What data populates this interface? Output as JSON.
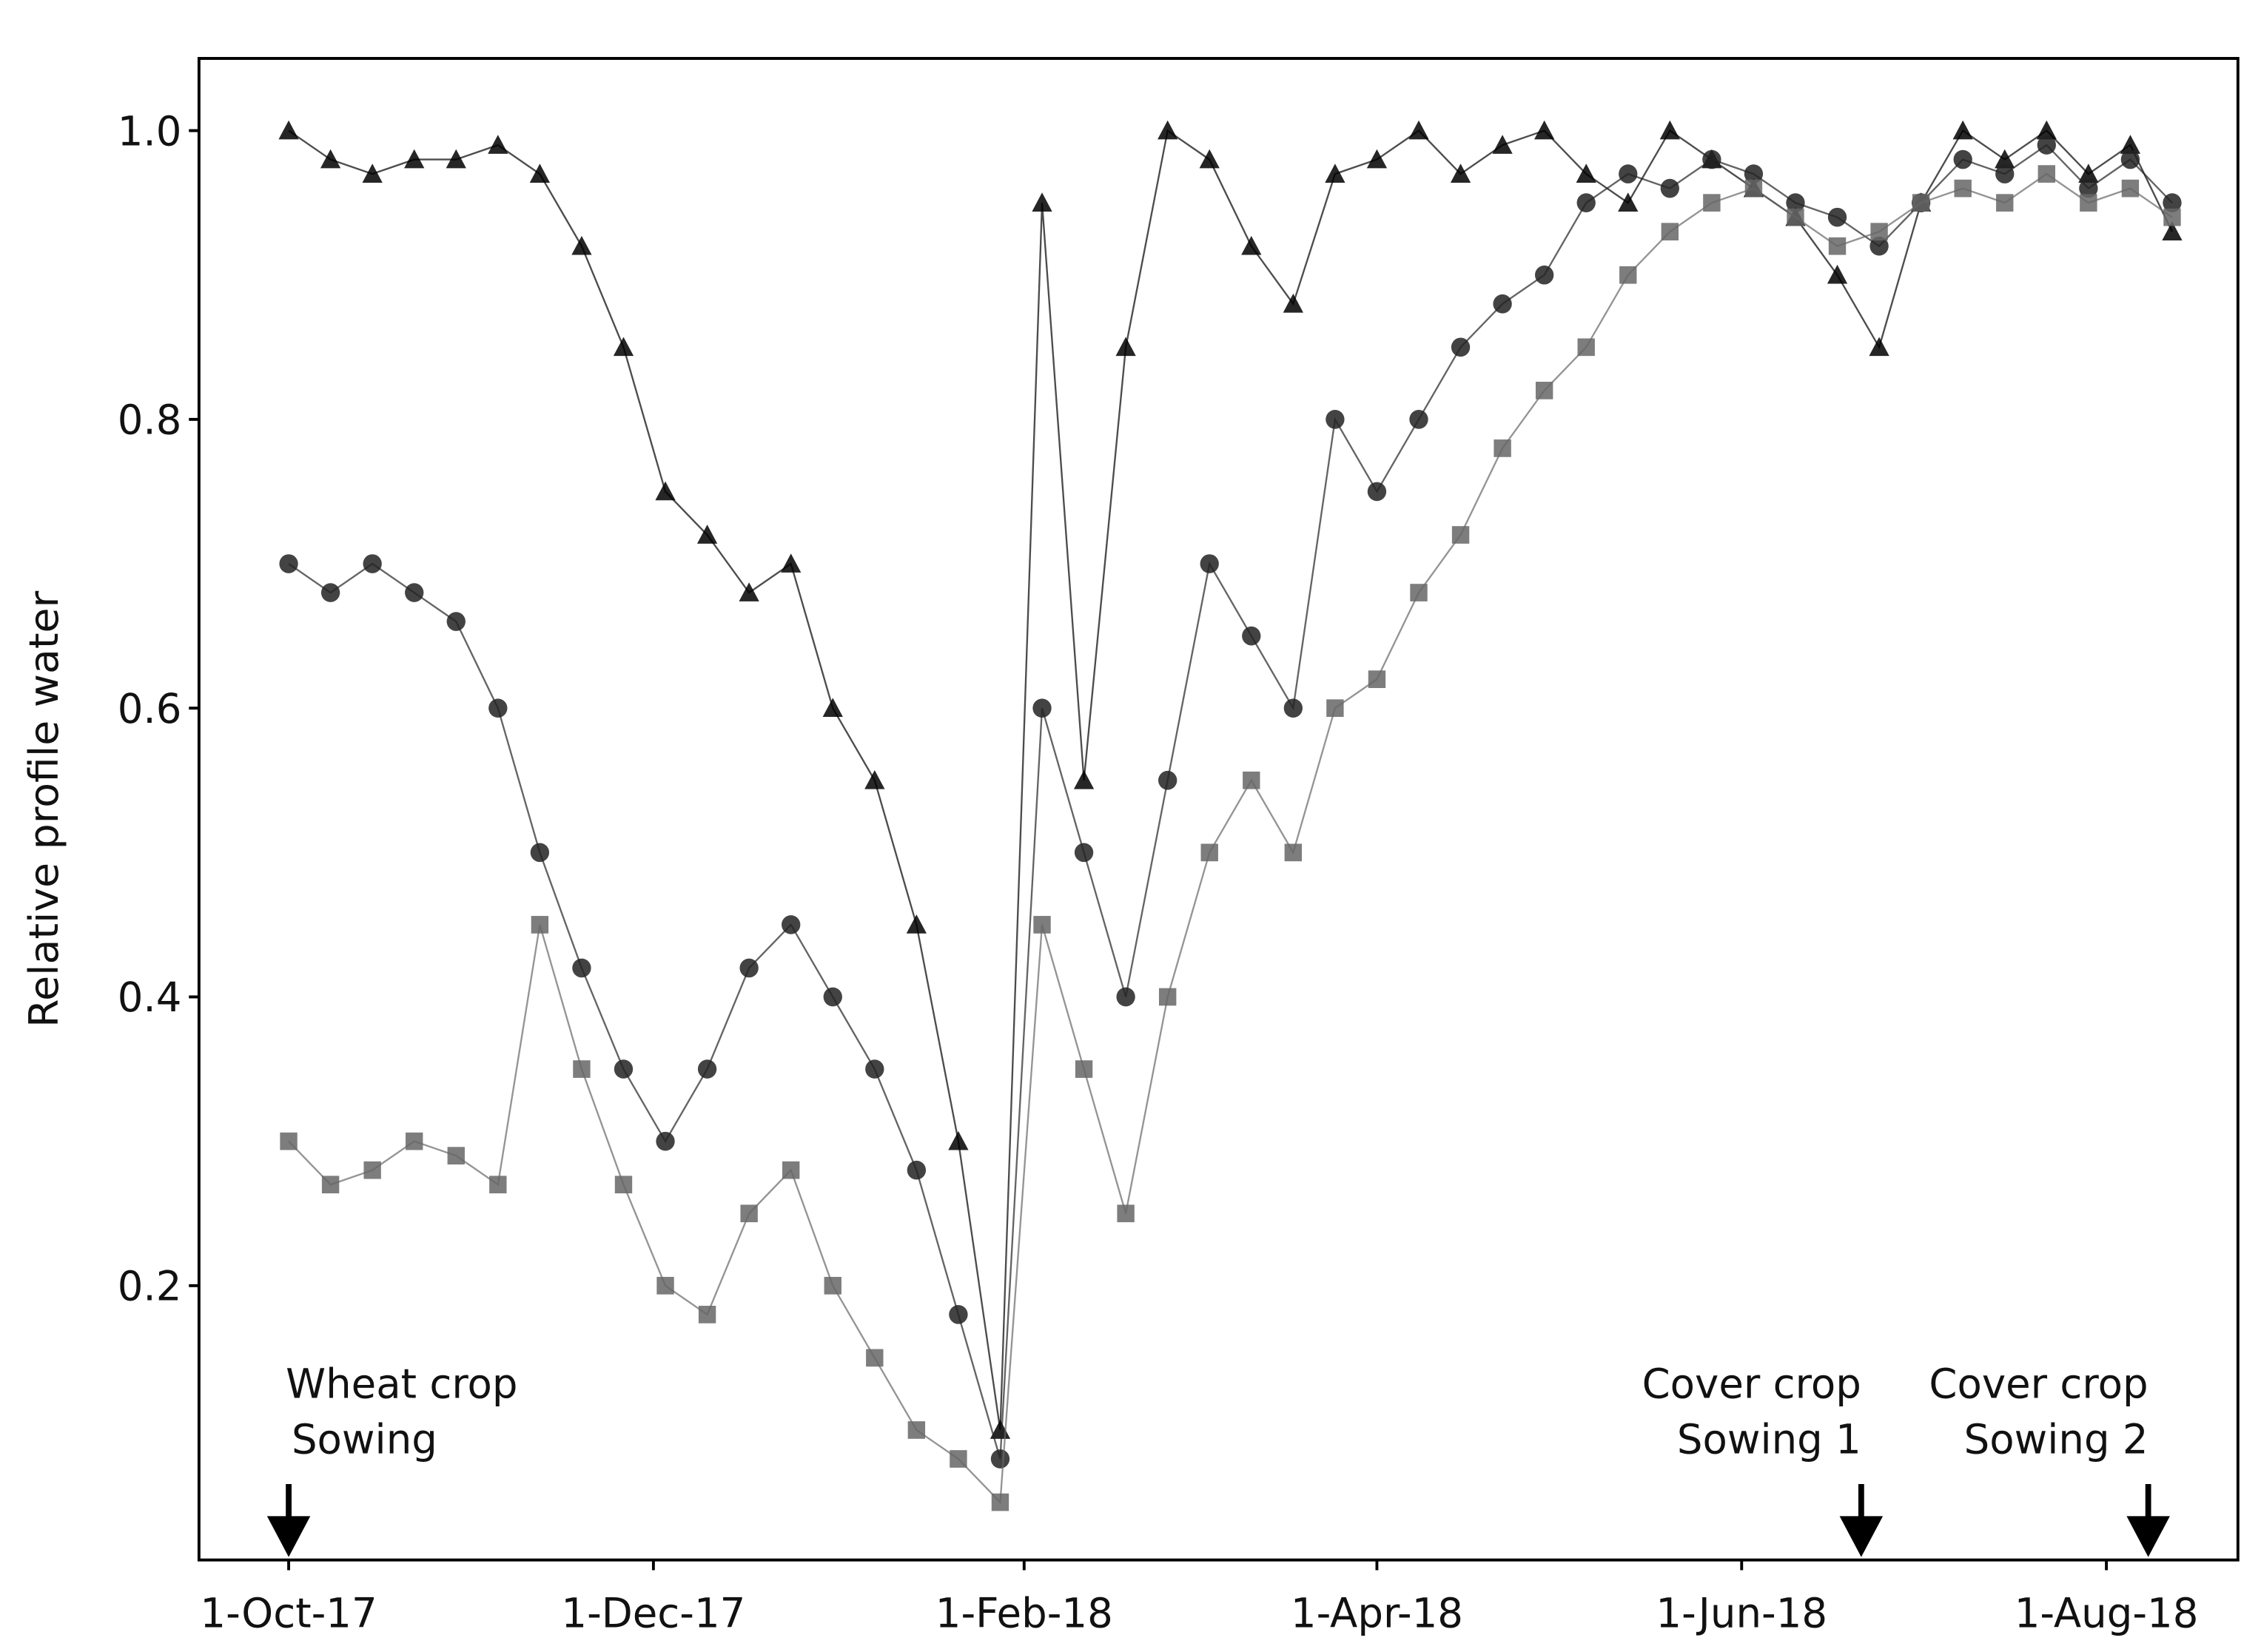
{
  "chart_data": {
    "type": "scatter",
    "y_label": "Relative profile water",
    "x": [
      "2017-10-01",
      "2017-10-08",
      "2017-10-15",
      "2017-10-22",
      "2017-10-29",
      "2017-11-05",
      "2017-11-12",
      "2017-11-19",
      "2017-11-26",
      "2017-12-03",
      "2017-12-10",
      "2017-12-17",
      "2017-12-24",
      "2017-12-31",
      "2018-01-07",
      "2018-01-14",
      "2018-01-21",
      "2018-01-28",
      "2018-02-04",
      "2018-02-11",
      "2018-02-18",
      "2018-02-25",
      "2018-03-04",
      "2018-03-11",
      "2018-03-18",
      "2018-03-25",
      "2018-04-01",
      "2018-04-08",
      "2018-04-15",
      "2018-04-22",
      "2018-04-29",
      "2018-05-06",
      "2018-05-13",
      "2018-05-20",
      "2018-05-27",
      "2018-06-03",
      "2018-06-10",
      "2018-06-17",
      "2018-06-24",
      "2018-07-01",
      "2018-07-08",
      "2018-07-15",
      "2018-07-22",
      "2018-07-29",
      "2018-08-05",
      "2018-08-12"
    ],
    "series": [
      {
        "marker": "triangle",
        "color": "#000000",
        "values": [
          1.0,
          0.98,
          0.97,
          0.98,
          0.98,
          0.99,
          0.97,
          0.92,
          0.85,
          0.75,
          0.72,
          0.68,
          0.7,
          0.6,
          0.55,
          0.45,
          0.3,
          0.1,
          0.95,
          0.55,
          0.85,
          1.0,
          0.98,
          0.92,
          0.88,
          0.97,
          0.98,
          1.0,
          0.97,
          0.99,
          1.0,
          0.97,
          0.95,
          1.0,
          0.98,
          0.96,
          0.94,
          0.9,
          0.85,
          0.95,
          1.0,
          0.98,
          1.0,
          0.97,
          0.99,
          0.93
        ]
      },
      {
        "marker": "circle",
        "color": "#222222",
        "values": [
          0.7,
          0.68,
          0.7,
          0.68,
          0.66,
          0.6,
          0.5,
          0.42,
          0.35,
          0.3,
          0.35,
          0.42,
          0.45,
          0.4,
          0.35,
          0.28,
          0.18,
          0.08,
          0.6,
          0.5,
          0.4,
          0.55,
          0.7,
          0.65,
          0.6,
          0.8,
          0.75,
          0.8,
          0.85,
          0.88,
          0.9,
          0.95,
          0.97,
          0.96,
          0.98,
          0.97,
          0.95,
          0.94,
          0.92,
          0.95,
          0.98,
          0.97,
          0.99,
          0.96,
          0.98,
          0.95
        ]
      },
      {
        "marker": "square",
        "color": "#666666",
        "values": [
          0.3,
          0.27,
          0.28,
          0.3,
          0.29,
          0.27,
          0.45,
          0.35,
          0.27,
          0.2,
          0.18,
          0.25,
          0.28,
          0.2,
          0.15,
          0.1,
          0.08,
          0.05,
          0.45,
          0.35,
          0.25,
          0.4,
          0.5,
          0.55,
          0.5,
          0.6,
          0.62,
          0.68,
          0.72,
          0.78,
          0.82,
          0.85,
          0.9,
          0.93,
          0.95,
          0.96,
          0.94,
          0.92,
          0.93,
          0.95,
          0.96,
          0.95,
          0.97,
          0.95,
          0.96,
          0.94
        ]
      }
    ],
    "xlim": [
      "2017-09-16",
      "2018-08-23"
    ],
    "xticks": [
      {
        "value": "2017-10-01",
        "label": "1-Oct-17"
      },
      {
        "value": "2017-12-01",
        "label": "1-Dec-17"
      },
      {
        "value": "2018-02-01",
        "label": "1-Feb-18"
      },
      {
        "value": "2018-04-01",
        "label": "1-Apr-18"
      },
      {
        "value": "2018-06-01",
        "label": "1-Jun-18"
      },
      {
        "value": "2018-08-01",
        "label": "1-Aug-18"
      }
    ],
    "ylim": [
      0.01,
      1.05
    ],
    "yticks": [
      0.2,
      0.4,
      0.6,
      0.8,
      {
        "value": 1.0,
        "label": "1.0"
      }
    ],
    "annotations": [
      {
        "x": "2017-10-01",
        "lines": [
          "Wheat crop",
          "Sowing"
        ]
      },
      {
        "x": "2018-06-21",
        "lines": [
          "Cover crop",
          "Sowing 1"
        ]
      },
      {
        "x": "2018-08-08",
        "lines": [
          "Cover crop",
          "Sowing 2"
        ]
      }
    ]
  }
}
